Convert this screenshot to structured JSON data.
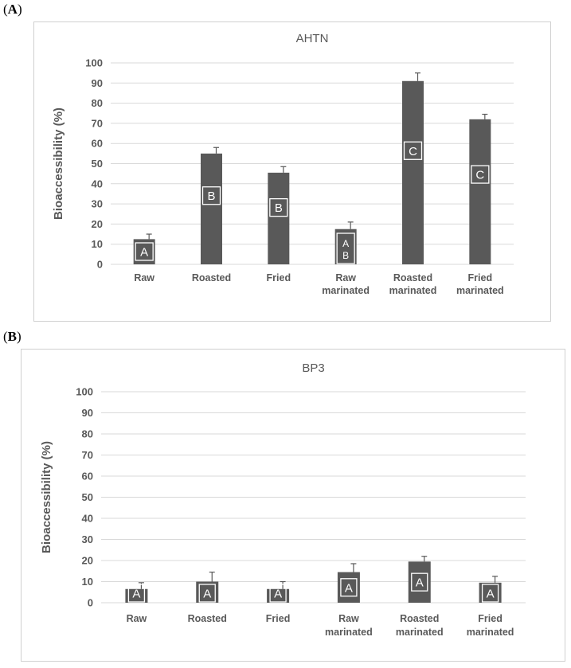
{
  "panels": [
    {
      "label_open": "(",
      "label_letter": "A",
      "label_close": ")"
    },
    {
      "label_open": "(",
      "label_letter": "B",
      "label_close": ")"
    }
  ],
  "chart_data": [
    {
      "type": "bar",
      "title": "AHTN",
      "ylabel": "Bioaccessibility (%)",
      "xlabel": "",
      "ylim": [
        0,
        100
      ],
      "yticks": [
        0,
        10,
        20,
        30,
        40,
        50,
        60,
        70,
        80,
        90,
        100
      ],
      "grid": true,
      "categories": [
        [
          "Raw"
        ],
        [
          "Roasted"
        ],
        [
          "Fried"
        ],
        [
          "Raw",
          "marinated"
        ],
        [
          "Roasted",
          "marinated"
        ],
        [
          "Fried",
          "marinated"
        ]
      ],
      "values": [
        12.5,
        55,
        45.5,
        17.5,
        91,
        72
      ],
      "errors": [
        2.5,
        3,
        3,
        3.5,
        4,
        2.5
      ],
      "letters": [
        [
          "A"
        ],
        [
          "B"
        ],
        [
          "B"
        ],
        [
          "A",
          "B"
        ],
        [
          "C"
        ],
        [
          "C"
        ]
      ],
      "colors": {
        "bar": "#595959",
        "grid": "#d9d9d9"
      }
    },
    {
      "type": "bar",
      "title": "BP3",
      "ylabel": "Bioaccessibility (%)",
      "xlabel": "",
      "ylim": [
        0,
        100
      ],
      "yticks": [
        0,
        10,
        20,
        30,
        40,
        50,
        60,
        70,
        80,
        90,
        100
      ],
      "grid": true,
      "categories": [
        [
          "Raw"
        ],
        [
          "Roasted"
        ],
        [
          "Fried"
        ],
        [
          "Raw",
          "marinated"
        ],
        [
          "Roasted",
          "marinated"
        ],
        [
          "Fried",
          "marinated"
        ]
      ],
      "values": [
        6.5,
        10,
        6.5,
        14.5,
        19.5,
        9.5
      ],
      "errors": [
        3,
        4.5,
        3.5,
        4,
        2.5,
        3
      ],
      "letters": [
        [
          "A"
        ],
        [
          "A"
        ],
        [
          "A"
        ],
        [
          "A"
        ],
        [
          "A"
        ],
        [
          "A"
        ]
      ],
      "colors": {
        "bar": "#595959",
        "grid": "#d9d9d9"
      }
    }
  ]
}
